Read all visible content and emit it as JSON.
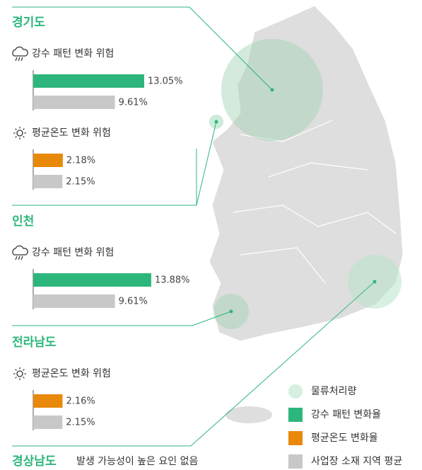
{
  "regions": [
    {
      "name": "경기도",
      "metrics": [
        {
          "label": "강수 패턴 변화 위험",
          "icon": "rain",
          "values": [
            13.05,
            9.61
          ],
          "value_labels": [
            "13.05%",
            "9.61%"
          ],
          "colors": [
            "#2db67c",
            "#c8c8c8"
          ]
        },
        {
          "label": "평균온도 변화 위험",
          "icon": "sun",
          "values": [
            2.18,
            2.15
          ],
          "value_labels": [
            "2.18%",
            "2.15%"
          ],
          "colors": [
            "#e8890c",
            "#c8c8c8"
          ]
        }
      ]
    },
    {
      "name": "인천",
      "metrics": [
        {
          "label": "강수 패턴 변화 위험",
          "icon": "rain",
          "values": [
            13.88,
            9.61
          ],
          "value_labels": [
            "13.88%",
            "9.61%"
          ],
          "colors": [
            "#2db67c",
            "#c8c8c8"
          ]
        }
      ]
    },
    {
      "name": "전라남도",
      "metrics": [
        {
          "label": "평균온도 변화 위험",
          "icon": "sun",
          "values": [
            2.16,
            2.15
          ],
          "value_labels": [
            "2.16%",
            "2.15%"
          ],
          "colors": [
            "#e8890c",
            "#c8c8c8"
          ]
        }
      ]
    },
    {
      "name": "경상남도",
      "note": "발생 가능성이 높은 요인 없음"
    }
  ],
  "legend": [
    {
      "label": "물류처리량",
      "color": "#d6efe1",
      "shape": "circle"
    },
    {
      "label": "강수 패턴 변화율",
      "color": "#2db67c",
      "shape": "square"
    },
    {
      "label": "평균온도 변화율",
      "color": "#e8890c",
      "shape": "square"
    },
    {
      "label": "사업장 소재 지역 평균",
      "color": "#c8c8c8",
      "shape": "square"
    }
  ]
}
